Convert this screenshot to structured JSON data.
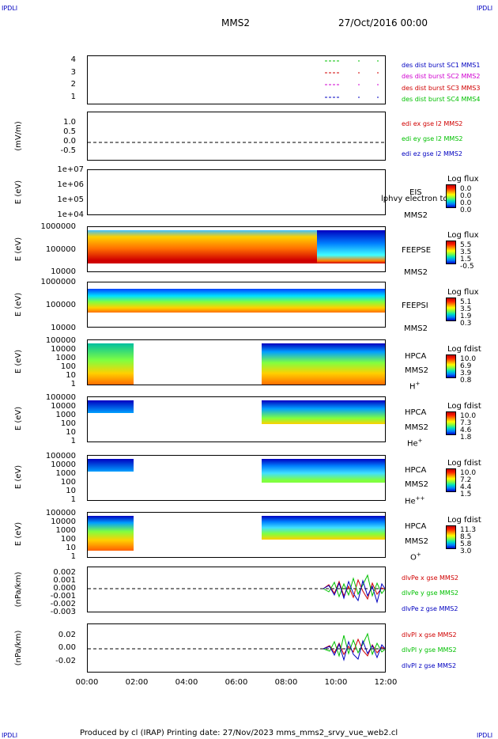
{
  "corner_label": "IPDLI",
  "header": {
    "spacecraft": "MMS2",
    "date": "27/Oct/2016 00:00"
  },
  "footer": {
    "text": "Produced by cl (IRAP)   Printing date: 27/Nov/2023   mms_mms2_srvy_vue_web2.cl"
  },
  "colors": {
    "red": "#d00000",
    "green": "#00c000",
    "blue": "#0000c0",
    "magenta": "#d000d0"
  },
  "chart_data": {
    "type": "line",
    "x_axis": {
      "range": [
        "00:00",
        "12:00"
      ],
      "tick_labels": [
        "00:00",
        "02:00",
        "04:00",
        "06:00",
        "08:00",
        "10:00",
        "12:00"
      ]
    },
    "panels": [
      {
        "id": "burst",
        "ylabel": "",
        "yticks": [
          "4",
          "3",
          "2",
          "1"
        ],
        "legend": [
          "des dist burst SC1 MMS1",
          "des dist burst SC2 MMS2",
          "des dist burst SC3 MMS3",
          "des dist burst SC4 MMS4"
        ],
        "legend_colors": [
          "#0000c0",
          "#d000d0",
          "#d00000",
          "#00c000"
        ]
      },
      {
        "id": "edi",
        "ylabel": "(mV/m)",
        "yticks": [
          "1.0",
          "0.5",
          "0.0",
          "-0.5"
        ],
        "ylim": [
          -0.75,
          1.25
        ],
        "legend": [
          "edi ex gse l2 MMS2",
          "edi ey gse l2 MMS2",
          "edi ez gse l2 MMS2"
        ],
        "legend_colors": [
          "#d00000",
          "#00c000",
          "#0000c0"
        ]
      },
      {
        "id": "eis",
        "ylabel": "E (eV)",
        "yticks": [
          "1e+07",
          "1e+06",
          "1e+05",
          "1e+04"
        ],
        "labels": [
          "EIS",
          "MMS2"
        ],
        "overlay_text": "lphvy electron to",
        "colorbar": {
          "title": "Log flux",
          "values": [
            "0.0",
            "0.0",
            "0.0",
            "0.0"
          ]
        }
      },
      {
        "id": "feepse",
        "ylabel": "E (eV)",
        "yticks": [
          "1000000",
          "100000",
          "10000"
        ],
        "labels": [
          "FEEPSE",
          "MMS2"
        ],
        "colorbar": {
          "title": "Log flux",
          "values": [
            "5.5",
            "3.5",
            "1.5",
            "-0.5"
          ]
        }
      },
      {
        "id": "feepsi",
        "ylabel": "E (eV)",
        "yticks": [
          "1000000",
          "100000",
          "10000"
        ],
        "labels": [
          "FEEPSI",
          "MMS2"
        ],
        "colorbar": {
          "title": "Log flux",
          "values": [
            "5.1",
            "3.5",
            "1.9",
            "0.3"
          ]
        }
      },
      {
        "id": "hpca-h",
        "ylabel": "E (eV)",
        "yticks": [
          "100000",
          "10000",
          "1000",
          "100",
          "10",
          "1"
        ],
        "labels": [
          "HPCA",
          "MMS2"
        ],
        "species": "H",
        "species_sup": "+",
        "colorbar": {
          "title": "Log fdist",
          "values": [
            "10.0",
            "6.9",
            "3.9",
            "0.8"
          ]
        }
      },
      {
        "id": "hpca-he",
        "ylabel": "E (eV)",
        "yticks": [
          "100000",
          "10000",
          "1000",
          "100",
          "10",
          "1"
        ],
        "labels": [
          "HPCA",
          "MMS2"
        ],
        "species": "He",
        "species_sup": "+",
        "colorbar": {
          "title": "Log fdist",
          "values": [
            "10.0",
            "7.3",
            "4.6",
            "1.8"
          ]
        }
      },
      {
        "id": "hpca-he2",
        "ylabel": "E (eV)",
        "yticks": [
          "100000",
          "10000",
          "1000",
          "100",
          "10",
          "1"
        ],
        "labels": [
          "HPCA",
          "MMS2"
        ],
        "species": "He",
        "species_sup": "++",
        "colorbar": {
          "title": "Log fdist",
          "values": [
            "10.0",
            "7.2",
            "4.4",
            "1.5"
          ]
        }
      },
      {
        "id": "hpca-o",
        "ylabel": "E (eV)",
        "yticks": [
          "100000",
          "10000",
          "1000",
          "100",
          "10",
          "1"
        ],
        "labels": [
          "HPCA",
          "MMS2"
        ],
        "species": "O",
        "species_sup": "+",
        "colorbar": {
          "title": "Log fdist",
          "values": [
            "11.3",
            "8.5",
            "5.8",
            "3.0"
          ]
        }
      },
      {
        "id": "divpe",
        "ylabel": "(nPa/km)",
        "yticks": [
          "0.002",
          "0.001",
          "0.000",
          "-0.001",
          "-0.002",
          "-0.003"
        ],
        "ylim": [
          -0.003,
          0.0025
        ],
        "legend": [
          "dlvPe x gse MMS2",
          "dlvPe y gse MMS2",
          "dlvPe z gse MMS2"
        ],
        "legend_colors": [
          "#d00000",
          "#00c000",
          "#0000c0"
        ]
      },
      {
        "id": "divpi",
        "ylabel": "(nPa/km)",
        "yticks": [
          "0.02",
          "0.00",
          "-0.02"
        ],
        "ylim": [
          -0.03,
          0.03
        ],
        "legend": [
          "dlvPl x gse MMS2",
          "dlvPl y gse MMS2",
          "dlvPl z gse MMS2"
        ],
        "legend_colors": [
          "#d00000",
          "#00c000",
          "#0000c0"
        ]
      }
    ]
  }
}
